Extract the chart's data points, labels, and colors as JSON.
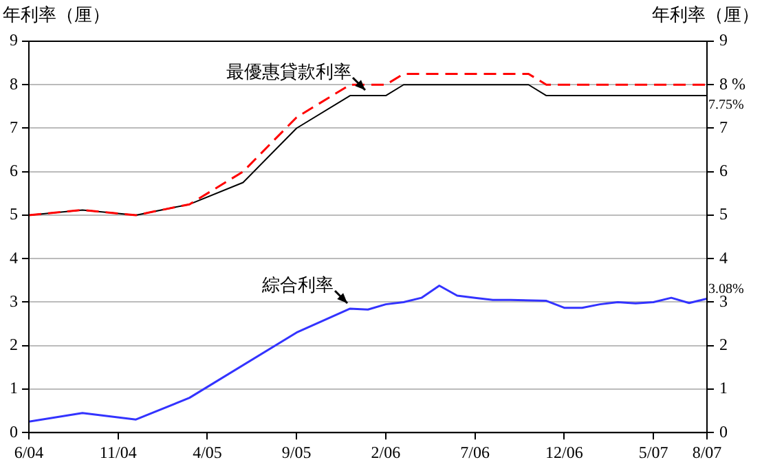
{
  "chart_data": {
    "type": "line",
    "ylabel": "年利率（厘）",
    "y2label": "年利率（厘）",
    "xlim": [
      "2004-06",
      "2007-08"
    ],
    "xticks": [
      {
        "value": "2004-06",
        "label": "6/04"
      },
      {
        "value": "2004-11",
        "label": "11/04"
      },
      {
        "value": "2005-04",
        "label": "4/05"
      },
      {
        "value": "2005-09",
        "label": "9/05"
      },
      {
        "value": "2006-02",
        "label": "2/06"
      },
      {
        "value": "2006-07",
        "label": "7/06"
      },
      {
        "value": "2006-12",
        "label": "12/06"
      },
      {
        "value": "2007-05",
        "label": "5/07"
      },
      {
        "value": "2007-08",
        "label": "8/07"
      }
    ],
    "ylim": [
      0,
      9
    ],
    "yticks": [
      0,
      1,
      2,
      3,
      4,
      5,
      6,
      7,
      8,
      9
    ],
    "y2lim": [
      0,
      9
    ],
    "y2ticks": [
      0,
      1,
      2,
      3,
      4,
      5,
      6,
      7,
      {
        "value": 8,
        "label": "8 %"
      },
      9
    ],
    "grid": "y",
    "legend": false,
    "marker": "none",
    "series": [
      {
        "color": "#ff0000",
        "line_style": "dashed",
        "x": [
          "2004-06",
          "2004-09",
          "2004-12",
          "2005-03",
          "2005-06",
          "2005-09",
          "2005-12",
          "2006-02",
          "2006-03",
          "2006-10",
          "2006-11",
          "2007-08"
        ],
        "values": [
          5.0,
          5.12,
          5.0,
          5.25,
          6.0,
          7.25,
          8.0,
          8.0,
          8.25,
          8.25,
          8.0,
          8.0
        ]
      },
      {
        "color": "#000000",
        "line_style": "solid",
        "x": [
          "2004-06",
          "2004-09",
          "2004-12",
          "2005-03",
          "2005-06",
          "2005-09",
          "2005-12",
          "2006-02",
          "2006-03",
          "2006-10",
          "2006-11",
          "2007-08"
        ],
        "values": [
          5.0,
          5.12,
          5.0,
          5.25,
          5.75,
          7.0,
          7.75,
          7.75,
          8.0,
          8.0,
          7.75,
          7.75
        ]
      },
      {
        "color": "#3333ff",
        "line_style": "solid",
        "x": [
          "2004-06",
          "2004-09",
          "2004-12",
          "2005-03",
          "2005-09",
          "2005-12",
          "2006-01",
          "2006-02",
          "2006-03",
          "2006-04",
          "2006-05",
          "2006-06",
          "2006-07",
          "2006-08",
          "2006-09",
          "2006-11",
          "2006-12",
          "2007-01",
          "2007-02",
          "2007-03",
          "2007-04",
          "2007-05",
          "2007-06",
          "2007-07",
          "2007-08"
        ],
        "values": [
          0.25,
          0.45,
          0.3,
          0.8,
          2.3,
          2.85,
          2.83,
          2.95,
          3.0,
          3.1,
          3.38,
          3.15,
          3.1,
          3.05,
          3.05,
          3.03,
          2.87,
          2.87,
          2.95,
          3.0,
          2.97,
          3.0,
          3.1,
          2.98,
          3.08
        ]
      }
    ],
    "annotations": [
      {
        "text": "最優惠貸款利率",
        "x": "2006-01",
        "y": 7.75
      },
      {
        "text": "綜合利率",
        "x": "2005-12",
        "y": 2.85
      },
      {
        "text": "7.75%",
        "x": "2007-08",
        "y": 7.75
      },
      {
        "text": "3.08%",
        "x": "2007-08",
        "y": 3.08
      }
    ]
  }
}
